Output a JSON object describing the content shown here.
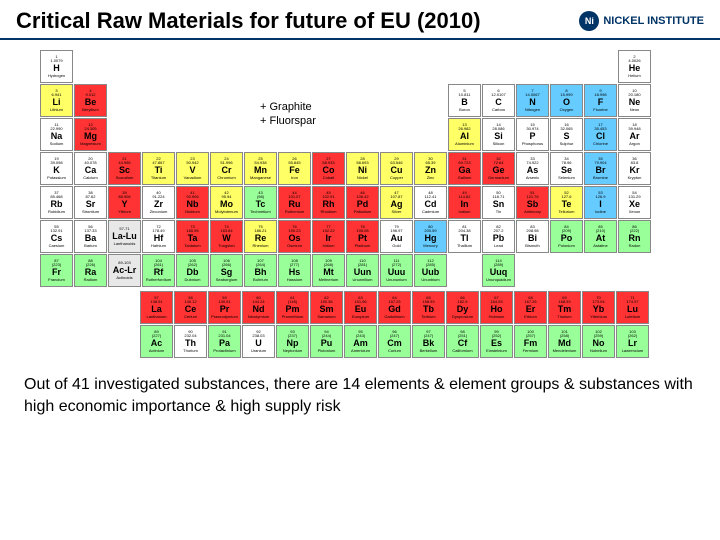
{
  "title": "Critical Raw Materials for future of EU (2010)",
  "logo": {
    "text": "NICKEL INSTITUTE"
  },
  "annotation": "+ Graphite\n+ Fluorspar",
  "footer": "Out of 41 investigated substances, there are 14 elements & element groups & substances with high economic importance & high supply risk",
  "colors": {
    "critical": "#ff3333",
    "yellow": "#ffff66",
    "green": "#99ff99",
    "blue": "#66ccff",
    "grey": "#e8e8e8",
    "white": "#ffffff",
    "border": "#888888",
    "header_rule": "#003366"
  },
  "elements": [
    {
      "n": 1,
      "s": "H",
      "nm": "Hydrogen",
      "m": "1.0079",
      "r": 1,
      "c": 1,
      "cl": "wht"
    },
    {
      "n": 2,
      "s": "He",
      "nm": "Helium",
      "m": "4.0026",
      "r": 1,
      "c": 18,
      "cl": "wht"
    },
    {
      "n": 3,
      "s": "Li",
      "nm": "Lithium",
      "m": "6.941",
      "r": 2,
      "c": 1,
      "cl": "yel"
    },
    {
      "n": 4,
      "s": "Be",
      "nm": "Beryllium",
      "m": "9.012",
      "r": 2,
      "c": 2,
      "cl": "red"
    },
    {
      "n": 5,
      "s": "B",
      "nm": "Boron",
      "m": "10.811",
      "r": 2,
      "c": 13,
      "cl": "wht"
    },
    {
      "n": 6,
      "s": "C",
      "nm": "Carbon",
      "m": "12.0107",
      "r": 2,
      "c": 14,
      "cl": "wht"
    },
    {
      "n": 7,
      "s": "N",
      "nm": "Nitrogen",
      "m": "14.0067",
      "r": 2,
      "c": 15,
      "cl": "blu"
    },
    {
      "n": 8,
      "s": "O",
      "nm": "Oxygen",
      "m": "15.999",
      "r": 2,
      "c": 16,
      "cl": "blu"
    },
    {
      "n": 9,
      "s": "F",
      "nm": "Fluorine",
      "m": "18.998",
      "r": 2,
      "c": 17,
      "cl": "blu"
    },
    {
      "n": 10,
      "s": "Ne",
      "nm": "Neon",
      "m": "20.180",
      "r": 2,
      "c": 18,
      "cl": "wht"
    },
    {
      "n": 11,
      "s": "Na",
      "nm": "Sodium",
      "m": "22.990",
      "r": 3,
      "c": 1,
      "cl": "wht"
    },
    {
      "n": 12,
      "s": "Mg",
      "nm": "Magnesium",
      "m": "24.305",
      "r": 3,
      "c": 2,
      "cl": "red"
    },
    {
      "n": 13,
      "s": "Al",
      "nm": "Aluminium",
      "m": "26.982",
      "r": 3,
      "c": 13,
      "cl": "yel"
    },
    {
      "n": 14,
      "s": "Si",
      "nm": "Silicon",
      "m": "28.086",
      "r": 3,
      "c": 14,
      "cl": "wht"
    },
    {
      "n": 15,
      "s": "P",
      "nm": "Phosphorus",
      "m": "30.974",
      "r": 3,
      "c": 15,
      "cl": "wht"
    },
    {
      "n": 16,
      "s": "S",
      "nm": "Sulphur",
      "m": "32.065",
      "r": 3,
      "c": 16,
      "cl": "wht"
    },
    {
      "n": 17,
      "s": "Cl",
      "nm": "Chlorine",
      "m": "35.453",
      "r": 3,
      "c": 17,
      "cl": "blu"
    },
    {
      "n": 18,
      "s": "Ar",
      "nm": "Argon",
      "m": "39.948",
      "r": 3,
      "c": 18,
      "cl": "wht"
    },
    {
      "n": 19,
      "s": "K",
      "nm": "Potassium",
      "m": "39.098",
      "r": 4,
      "c": 1,
      "cl": "wht"
    },
    {
      "n": 20,
      "s": "Ca",
      "nm": "Calcium",
      "m": "40.078",
      "r": 4,
      "c": 2,
      "cl": "wht"
    },
    {
      "n": 21,
      "s": "Sc",
      "nm": "Scandium",
      "m": "44.956",
      "r": 4,
      "c": 3,
      "cl": "red"
    },
    {
      "n": 22,
      "s": "Ti",
      "nm": "Titanium",
      "m": "47.867",
      "r": 4,
      "c": 4,
      "cl": "yel"
    },
    {
      "n": 23,
      "s": "V",
      "nm": "Vanadium",
      "m": "50.942",
      "r": 4,
      "c": 5,
      "cl": "yel"
    },
    {
      "n": 24,
      "s": "Cr",
      "nm": "Chromium",
      "m": "51.996",
      "r": 4,
      "c": 6,
      "cl": "yel"
    },
    {
      "n": 25,
      "s": "Mn",
      "nm": "Manganese",
      "m": "54.938",
      "r": 4,
      "c": 7,
      "cl": "yel"
    },
    {
      "n": 26,
      "s": "Fe",
      "nm": "Iron",
      "m": "55.845",
      "r": 4,
      "c": 8,
      "cl": "yel"
    },
    {
      "n": 27,
      "s": "Co",
      "nm": "Cobalt",
      "m": "58.933",
      "r": 4,
      "c": 9,
      "cl": "red"
    },
    {
      "n": 28,
      "s": "Ni",
      "nm": "Nickel",
      "m": "58.693",
      "r": 4,
      "c": 10,
      "cl": "yel"
    },
    {
      "n": 29,
      "s": "Cu",
      "nm": "Copper",
      "m": "63.546",
      "r": 4,
      "c": 11,
      "cl": "yel"
    },
    {
      "n": 30,
      "s": "Zn",
      "nm": "Zinc",
      "m": "65.39",
      "r": 4,
      "c": 12,
      "cl": "yel"
    },
    {
      "n": 31,
      "s": "Ga",
      "nm": "Gallium",
      "m": "69.723",
      "r": 4,
      "c": 13,
      "cl": "red"
    },
    {
      "n": 32,
      "s": "Ge",
      "nm": "Germanium",
      "m": "72.64",
      "r": 4,
      "c": 14,
      "cl": "red"
    },
    {
      "n": 33,
      "s": "As",
      "nm": "Arsenic",
      "m": "74.922",
      "r": 4,
      "c": 15,
      "cl": "wht"
    },
    {
      "n": 34,
      "s": "Se",
      "nm": "Selenium",
      "m": "78.96",
      "r": 4,
      "c": 16,
      "cl": "wht"
    },
    {
      "n": 35,
      "s": "Br",
      "nm": "Bromine",
      "m": "79.904",
      "r": 4,
      "c": 17,
      "cl": "blu"
    },
    {
      "n": 36,
      "s": "Kr",
      "nm": "Krypton",
      "m": "83.8",
      "r": 4,
      "c": 18,
      "cl": "wht"
    },
    {
      "n": 37,
      "s": "Rb",
      "nm": "Rubidium",
      "m": "85.468",
      "r": 5,
      "c": 1,
      "cl": "wht"
    },
    {
      "n": 38,
      "s": "Sr",
      "nm": "Strontium",
      "m": "87.62",
      "r": 5,
      "c": 2,
      "cl": "wht"
    },
    {
      "n": 39,
      "s": "Y",
      "nm": "Yttrium",
      "m": "88.906",
      "r": 5,
      "c": 3,
      "cl": "red"
    },
    {
      "n": 40,
      "s": "Zr",
      "nm": "Zirconium",
      "m": "91.224",
      "r": 5,
      "c": 4,
      "cl": "wht"
    },
    {
      "n": 41,
      "s": "Nb",
      "nm": "Niobium",
      "m": "92.906",
      "r": 5,
      "c": 5,
      "cl": "red"
    },
    {
      "n": 42,
      "s": "Mo",
      "nm": "Molybdenum",
      "m": "95.94",
      "r": 5,
      "c": 6,
      "cl": "yel"
    },
    {
      "n": 43,
      "s": "Tc",
      "nm": "Technetium",
      "m": "(98)",
      "r": 5,
      "c": 7,
      "cl": "grn"
    },
    {
      "n": 44,
      "s": "Ru",
      "nm": "Ruthenium",
      "m": "101.07",
      "r": 5,
      "c": 8,
      "cl": "red"
    },
    {
      "n": 45,
      "s": "Rh",
      "nm": "Rhodium",
      "m": "102.91",
      "r": 5,
      "c": 9,
      "cl": "red"
    },
    {
      "n": 46,
      "s": "Pd",
      "nm": "Palladium",
      "m": "106.42",
      "r": 5,
      "c": 10,
      "cl": "red"
    },
    {
      "n": 47,
      "s": "Ag",
      "nm": "Silver",
      "m": "107.87",
      "r": 5,
      "c": 11,
      "cl": "yel"
    },
    {
      "n": 48,
      "s": "Cd",
      "nm": "Cadmium",
      "m": "112.41",
      "r": 5,
      "c": 12,
      "cl": "wht"
    },
    {
      "n": 49,
      "s": "In",
      "nm": "Indium",
      "m": "114.82",
      "r": 5,
      "c": 13,
      "cl": "red"
    },
    {
      "n": 50,
      "s": "Sn",
      "nm": "Tin",
      "m": "118.71",
      "r": 5,
      "c": 14,
      "cl": "wht"
    },
    {
      "n": 51,
      "s": "Sb",
      "nm": "Antimony",
      "m": "121.76",
      "r": 5,
      "c": 15,
      "cl": "red"
    },
    {
      "n": 52,
      "s": "Te",
      "nm": "Tellurium",
      "m": "127.6",
      "r": 5,
      "c": 16,
      "cl": "yel"
    },
    {
      "n": 53,
      "s": "I",
      "nm": "Iodine",
      "m": "126.9",
      "r": 5,
      "c": 17,
      "cl": "blu"
    },
    {
      "n": 54,
      "s": "Xe",
      "nm": "Xenon",
      "m": "131.29",
      "r": 5,
      "c": 18,
      "cl": "wht"
    },
    {
      "n": 55,
      "s": "Cs",
      "nm": "Caesium",
      "m": "132.91",
      "r": 6,
      "c": 1,
      "cl": "wht"
    },
    {
      "n": 56,
      "s": "Ba",
      "nm": "Barium",
      "m": "137.33",
      "r": 6,
      "c": 2,
      "cl": "wht"
    },
    {
      "n": 0,
      "s": "La-Lu",
      "nm": "Lanthanoids",
      "m": "57-71",
      "r": 6,
      "c": 3,
      "cl": "gry"
    },
    {
      "n": 72,
      "s": "Hf",
      "nm": "Hafnium",
      "m": "178.49",
      "r": 6,
      "c": 4,
      "cl": "wht"
    },
    {
      "n": 73,
      "s": "Ta",
      "nm": "Tantalum",
      "m": "180.95",
      "r": 6,
      "c": 5,
      "cl": "red"
    },
    {
      "n": 74,
      "s": "W",
      "nm": "Tungsten",
      "m": "183.84",
      "r": 6,
      "c": 6,
      "cl": "red"
    },
    {
      "n": 75,
      "s": "Re",
      "nm": "Rhenium",
      "m": "186.21",
      "r": 6,
      "c": 7,
      "cl": "yel"
    },
    {
      "n": 76,
      "s": "Os",
      "nm": "Osmium",
      "m": "190.23",
      "r": 6,
      "c": 8,
      "cl": "red"
    },
    {
      "n": 77,
      "s": "Ir",
      "nm": "Iridium",
      "m": "192.22",
      "r": 6,
      "c": 9,
      "cl": "red"
    },
    {
      "n": 78,
      "s": "Pt",
      "nm": "Platinum",
      "m": "195.08",
      "r": 6,
      "c": 10,
      "cl": "red"
    },
    {
      "n": 79,
      "s": "Au",
      "nm": "Gold",
      "m": "196.97",
      "r": 6,
      "c": 11,
      "cl": "wht"
    },
    {
      "n": 80,
      "s": "Hg",
      "nm": "Mercury",
      "m": "200.59",
      "r": 6,
      "c": 12,
      "cl": "blu"
    },
    {
      "n": 81,
      "s": "Tl",
      "nm": "Thallium",
      "m": "204.38",
      "r": 6,
      "c": 13,
      "cl": "wht"
    },
    {
      "n": 82,
      "s": "Pb",
      "nm": "Lead",
      "m": "207.2",
      "r": 6,
      "c": 14,
      "cl": "wht"
    },
    {
      "n": 83,
      "s": "Bi",
      "nm": "Bismuth",
      "m": "208.98",
      "r": 6,
      "c": 15,
      "cl": "wht"
    },
    {
      "n": 84,
      "s": "Po",
      "nm": "Polonium",
      "m": "(209)",
      "r": 6,
      "c": 16,
      "cl": "grn"
    },
    {
      "n": 85,
      "s": "At",
      "nm": "Astatine",
      "m": "(210)",
      "r": 6,
      "c": 17,
      "cl": "grn"
    },
    {
      "n": 86,
      "s": "Rn",
      "nm": "Radon",
      "m": "(222)",
      "r": 6,
      "c": 18,
      "cl": "grn"
    },
    {
      "n": 87,
      "s": "Fr",
      "nm": "Francium",
      "m": "(223)",
      "r": 7,
      "c": 1,
      "cl": "grn"
    },
    {
      "n": 88,
      "s": "Ra",
      "nm": "Radium",
      "m": "(226)",
      "r": 7,
      "c": 2,
      "cl": "grn"
    },
    {
      "n": 0,
      "s": "Ac-Lr",
      "nm": "Actinoids",
      "m": "89-103",
      "r": 7,
      "c": 3,
      "cl": "gry"
    },
    {
      "n": 104,
      "s": "Rf",
      "nm": "Rutherfordium",
      "m": "(261)",
      "r": 7,
      "c": 4,
      "cl": "grn"
    },
    {
      "n": 105,
      "s": "Db",
      "nm": "Dubnium",
      "m": "(262)",
      "r": 7,
      "c": 5,
      "cl": "grn"
    },
    {
      "n": 106,
      "s": "Sg",
      "nm": "Seaborgium",
      "m": "(266)",
      "r": 7,
      "c": 6,
      "cl": "grn"
    },
    {
      "n": 107,
      "s": "Bh",
      "nm": "Bohrium",
      "m": "(264)",
      "r": 7,
      "c": 7,
      "cl": "grn"
    },
    {
      "n": 108,
      "s": "Hs",
      "nm": "Hassium",
      "m": "(277)",
      "r": 7,
      "c": 8,
      "cl": "grn"
    },
    {
      "n": 109,
      "s": "Mt",
      "nm": "Meitnerium",
      "m": "(268)",
      "r": 7,
      "c": 9,
      "cl": "grn"
    },
    {
      "n": 110,
      "s": "Uun",
      "nm": "Ununnilium",
      "m": "(281)",
      "r": 7,
      "c": 10,
      "cl": "grn"
    },
    {
      "n": 111,
      "s": "Uuu",
      "nm": "Unununium",
      "m": "(272)",
      "r": 7,
      "c": 11,
      "cl": "grn"
    },
    {
      "n": 112,
      "s": "Uub",
      "nm": "Ununbium",
      "m": "(285)",
      "r": 7,
      "c": 12,
      "cl": "grn"
    },
    {
      "n": 114,
      "s": "Uuq",
      "nm": "Ununquadium",
      "m": "(289)",
      "r": 7,
      "c": 14,
      "cl": "grn"
    }
  ],
  "lanthanides": [
    {
      "n": 57,
      "s": "La",
      "nm": "Lanthanum",
      "m": "138.91",
      "cl": "red"
    },
    {
      "n": 58,
      "s": "Ce",
      "nm": "Cerium",
      "m": "140.12",
      "cl": "red"
    },
    {
      "n": 59,
      "s": "Pr",
      "nm": "Praseodymium",
      "m": "140.91",
      "cl": "red"
    },
    {
      "n": 60,
      "s": "Nd",
      "nm": "Neodymium",
      "m": "144.24",
      "cl": "red"
    },
    {
      "n": 61,
      "s": "Pm",
      "nm": "Promethium",
      "m": "(145)",
      "cl": "red"
    },
    {
      "n": 62,
      "s": "Sm",
      "nm": "Samarium",
      "m": "150.36",
      "cl": "red"
    },
    {
      "n": 63,
      "s": "Eu",
      "nm": "Europium",
      "m": "151.96",
      "cl": "red"
    },
    {
      "n": 64,
      "s": "Gd",
      "nm": "Gadolinium",
      "m": "157.25",
      "cl": "red"
    },
    {
      "n": 65,
      "s": "Tb",
      "nm": "Terbium",
      "m": "158.93",
      "cl": "red"
    },
    {
      "n": 66,
      "s": "Dy",
      "nm": "Dysprosium",
      "m": "162.5",
      "cl": "red"
    },
    {
      "n": 67,
      "s": "Ho",
      "nm": "Holmium",
      "m": "164.93",
      "cl": "red"
    },
    {
      "n": 68,
      "s": "Er",
      "nm": "Erbium",
      "m": "167.26",
      "cl": "red"
    },
    {
      "n": 69,
      "s": "Tm",
      "nm": "Thulium",
      "m": "168.93",
      "cl": "red"
    },
    {
      "n": 70,
      "s": "Yb",
      "nm": "Ytterbium",
      "m": "173.04",
      "cl": "red"
    },
    {
      "n": 71,
      "s": "Lu",
      "nm": "Lutetium",
      "m": "174.97",
      "cl": "red"
    }
  ],
  "actinides": [
    {
      "n": 89,
      "s": "Ac",
      "nm": "Actinium",
      "m": "(227)",
      "cl": "grn"
    },
    {
      "n": 90,
      "s": "Th",
      "nm": "Thorium",
      "m": "232.04",
      "cl": "wht"
    },
    {
      "n": 91,
      "s": "Pa",
      "nm": "Protactinium",
      "m": "231.04",
      "cl": "grn"
    },
    {
      "n": 92,
      "s": "U",
      "nm": "Uranium",
      "m": "238.03",
      "cl": "wht"
    },
    {
      "n": 93,
      "s": "Np",
      "nm": "Neptunium",
      "m": "(237)",
      "cl": "grn"
    },
    {
      "n": 94,
      "s": "Pu",
      "nm": "Plutonium",
      "m": "(244)",
      "cl": "grn"
    },
    {
      "n": 95,
      "s": "Am",
      "nm": "Americium",
      "m": "(243)",
      "cl": "grn"
    },
    {
      "n": 96,
      "s": "Cm",
      "nm": "Curium",
      "m": "(247)",
      "cl": "grn"
    },
    {
      "n": 97,
      "s": "Bk",
      "nm": "Berkelium",
      "m": "(247)",
      "cl": "grn"
    },
    {
      "n": 98,
      "s": "Cf",
      "nm": "Californium",
      "m": "(251)",
      "cl": "grn"
    },
    {
      "n": 99,
      "s": "Es",
      "nm": "Einsteinium",
      "m": "(252)",
      "cl": "grn"
    },
    {
      "n": 100,
      "s": "Fm",
      "nm": "Fermium",
      "m": "(257)",
      "cl": "grn"
    },
    {
      "n": 101,
      "s": "Md",
      "nm": "Mendelevium",
      "m": "(258)",
      "cl": "grn"
    },
    {
      "n": 102,
      "s": "No",
      "nm": "Nobelium",
      "m": "(259)",
      "cl": "grn"
    },
    {
      "n": 103,
      "s": "Lr",
      "nm": "Lawrencium",
      "m": "(262)",
      "cl": "grn"
    }
  ]
}
